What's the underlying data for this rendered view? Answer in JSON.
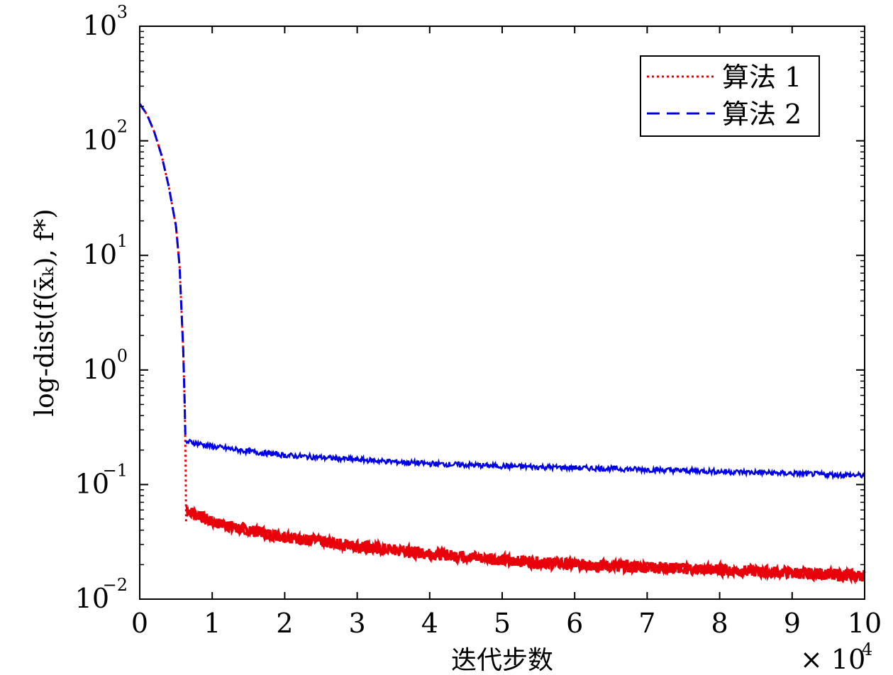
{
  "chart_data": {
    "type": "line",
    "title": "",
    "xlabel": "迭代步数",
    "ylabel": "log-dist(f(x̄ₖ), f*)",
    "x_multiplier_label": "× 10",
    "x_multiplier_exp": "4",
    "xlim": [
      0,
      100000
    ],
    "ylim": [
      0.01,
      1000
    ],
    "yscale": "log",
    "grid": false,
    "legend_position": "top-right",
    "x_ticks": [
      {
        "value": 0,
        "label": "0"
      },
      {
        "value": 10000,
        "label": "1"
      },
      {
        "value": 20000,
        "label": "2"
      },
      {
        "value": 30000,
        "label": "3"
      },
      {
        "value": 40000,
        "label": "4"
      },
      {
        "value": 50000,
        "label": "5"
      },
      {
        "value": 60000,
        "label": "6"
      },
      {
        "value": 70000,
        "label": "7"
      },
      {
        "value": 80000,
        "label": "8"
      },
      {
        "value": 90000,
        "label": "9"
      },
      {
        "value": 100000,
        "label": "10"
      }
    ],
    "y_ticks": [
      {
        "value": 0.01,
        "base": "10",
        "exp": "−2"
      },
      {
        "value": 0.1,
        "base": "10",
        "exp": "−1"
      },
      {
        "value": 1,
        "base": "10",
        "exp": "0"
      },
      {
        "value": 10,
        "base": "10",
        "exp": "1"
      },
      {
        "value": 100,
        "base": "10",
        "exp": "2"
      },
      {
        "value": 1000,
        "base": "10",
        "exp": "3"
      }
    ],
    "series": [
      {
        "name": "算法 1",
        "color": "#e8000b",
        "style": "dotted",
        "x": [
          0,
          1000,
          2000,
          3000,
          4000,
          5000,
          5500,
          6000,
          6200,
          6350,
          6400,
          6450,
          7000,
          10000,
          15000,
          20000,
          30000,
          40000,
          50000,
          60000,
          70000,
          80000,
          90000,
          100000
        ],
        "y": [
          210,
          170,
          120,
          75,
          40,
          18,
          8,
          1.5,
          0.5,
          0.12,
          0.045,
          0.062,
          0.058,
          0.047,
          0.04,
          0.035,
          0.029,
          0.025,
          0.022,
          0.02,
          0.019,
          0.018,
          0.017,
          0.016
        ]
      },
      {
        "name": "算法 2",
        "color": "#0000e6",
        "style": "dashed",
        "x": [
          0,
          1000,
          2000,
          3000,
          4000,
          5000,
          5500,
          6000,
          6200,
          6300,
          6400,
          7000,
          10000,
          15000,
          20000,
          30000,
          40000,
          50000,
          60000,
          70000,
          80000,
          90000,
          100000
        ],
        "y": [
          210,
          170,
          120,
          75,
          40,
          18,
          8,
          1.5,
          0.5,
          0.25,
          0.235,
          0.235,
          0.215,
          0.195,
          0.18,
          0.165,
          0.152,
          0.145,
          0.14,
          0.135,
          0.13,
          0.125,
          0.12
        ]
      }
    ]
  }
}
